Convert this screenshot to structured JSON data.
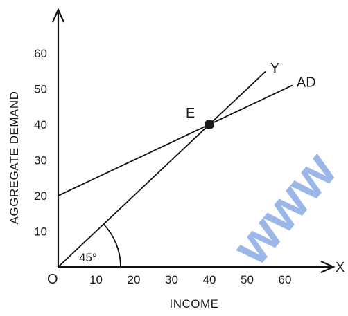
{
  "chart_data": {
    "type": "line",
    "xlabel": "INCOME",
    "ylabel": "AGGREGATE DEMAND",
    "x_axis_letter": "X",
    "origin_label": "O",
    "x_ticks": [
      "10",
      "20",
      "30",
      "40",
      "50",
      "60"
    ],
    "y_ticks": [
      "10",
      "20",
      "30",
      "40",
      "50",
      "60"
    ],
    "xlim": [
      0,
      65
    ],
    "ylim": [
      0,
      65
    ],
    "series": [
      {
        "name": "Y",
        "x": [
          0,
          55
        ],
        "y": [
          0,
          55
        ]
      },
      {
        "name": "AD",
        "x": [
          0,
          62
        ],
        "y": [
          20,
          51
        ]
      }
    ],
    "equilibrium": {
      "label": "E",
      "x": 40,
      "y": 40
    },
    "angle_label": "45°",
    "grid": false,
    "watermark": "www"
  }
}
